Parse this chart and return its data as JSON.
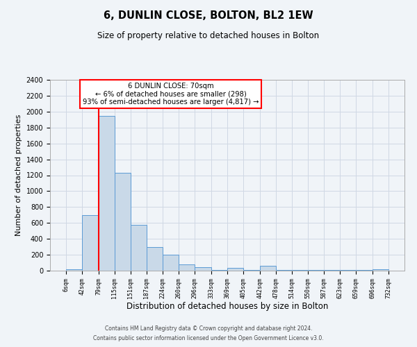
{
  "title": "6, DUNLIN CLOSE, BOLTON, BL2 1EW",
  "subtitle": "Size of property relative to detached houses in Bolton",
  "xlabel": "Distribution of detached houses by size in Bolton",
  "ylabel": "Number of detached properties",
  "bin_edges": [
    6,
    42,
    79,
    115,
    151,
    187,
    224,
    260,
    296,
    333,
    369,
    405,
    442,
    478,
    514,
    550,
    587,
    623,
    659,
    696,
    732
  ],
  "bin_heights": [
    15,
    700,
    1950,
    1230,
    580,
    300,
    200,
    80,
    45,
    10,
    35,
    5,
    60,
    5,
    5,
    5,
    5,
    5,
    5,
    20
  ],
  "bar_facecolor": "#c9d9e8",
  "bar_edgecolor": "#5b9bd5",
  "grid_color": "#d0d8e4",
  "vline_x": 79,
  "vline_color": "red",
  "annotation_title": "6 DUNLIN CLOSE: 70sqm",
  "annotation_line1": "← 6% of detached houses are smaller (298)",
  "annotation_line2": "93% of semi-detached houses are larger (4,817) →",
  "annotation_box_color": "white",
  "annotation_box_edgecolor": "red",
  "ylim": [
    0,
    2400
  ],
  "yticks": [
    0,
    200,
    400,
    600,
    800,
    1000,
    1200,
    1400,
    1600,
    1800,
    2000,
    2200,
    2400
  ],
  "tick_labels": [
    "6sqm",
    "42sqm",
    "79sqm",
    "115sqm",
    "151sqm",
    "187sqm",
    "224sqm",
    "260sqm",
    "296sqm",
    "333sqm",
    "369sqm",
    "405sqm",
    "442sqm",
    "478sqm",
    "514sqm",
    "550sqm",
    "587sqm",
    "623sqm",
    "659sqm",
    "696sqm",
    "732sqm"
  ],
  "footer1": "Contains HM Land Registry data © Crown copyright and database right 2024.",
  "footer2": "Contains public sector information licensed under the Open Government Licence v3.0.",
  "background_color": "#f0f4f8"
}
